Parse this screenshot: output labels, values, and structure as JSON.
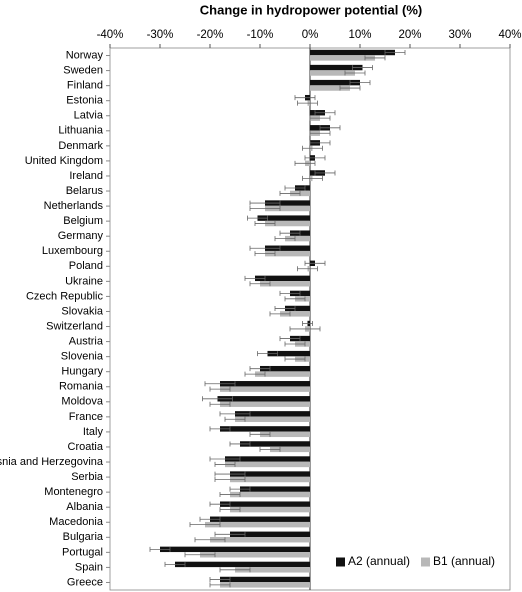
{
  "chart_data": {
    "type": "bar",
    "orientation": "horizontal",
    "title": "Change in hydropower potential (%)",
    "categories": [
      "Norway",
      "Sweden",
      "Finland",
      "Estonia",
      "Latvia",
      "Lithuania",
      "Denmark",
      "United Kingdom",
      "Ireland",
      "Belarus",
      "Netherlands",
      "Belgium",
      "Germany",
      "Luxembourg",
      "Poland",
      "Ukraine",
      "Czech Republic",
      "Slovakia",
      "Switzerland",
      "Austria",
      "Slovenia",
      "Hungary",
      "Romania",
      "Moldova",
      "France",
      "Italy",
      "Croatia",
      "Bosnia and Herzegovina",
      "Serbia",
      "Montenegro",
      "Albania",
      "Macedonia",
      "Bulgaria",
      "Portugal",
      "Spain",
      "Greece"
    ],
    "series": [
      {
        "name": "A2 (annual)",
        "color": "#111111",
        "values": [
          17,
          10.5,
          10,
          -1,
          3,
          4,
          2,
          1,
          3,
          -3,
          -9,
          -10.5,
          -4,
          -9,
          1,
          -11,
          -4,
          -5,
          -0.5,
          -4,
          -8.5,
          -10,
          -18,
          -18.5,
          -15,
          -18,
          -14,
          -17,
          -16,
          -14,
          -18,
          -20,
          -16,
          -30,
          -27,
          -18
        ],
        "errors": [
          2,
          2,
          2,
          2,
          2,
          2,
          2,
          2,
          2,
          2,
          3,
          2,
          2,
          3,
          2,
          2,
          2,
          2,
          1,
          2,
          2,
          2,
          3,
          3,
          3,
          2,
          2,
          3,
          3,
          2,
          2,
          2,
          3,
          2,
          2,
          2
        ]
      },
      {
        "name": "B1 (annual)",
        "color": "#b8b8b8",
        "values": [
          13,
          9,
          8,
          -0.5,
          2,
          2,
          0.5,
          -1,
          0.5,
          -4,
          -9,
          -9,
          -5,
          -9,
          -0.5,
          -10,
          -3,
          -6,
          -1,
          -3,
          -3,
          -11,
          -18,
          -18,
          -15,
          -10,
          -8,
          -17,
          -16,
          -16,
          -16,
          -21,
          -20,
          -22,
          -15,
          -18
        ],
        "errors": [
          2,
          2,
          2,
          2,
          2,
          2,
          2,
          2,
          2,
          2,
          3,
          2,
          2,
          2,
          2,
          2,
          2,
          2,
          3,
          2,
          2,
          2,
          2,
          2,
          2,
          2,
          2,
          2,
          3,
          2,
          2,
          3,
          3,
          3,
          3,
          2
        ]
      }
    ],
    "xlim": [
      -40,
      40
    ],
    "xticks": [
      {
        "value": -40,
        "label": "-40%"
      },
      {
        "value": -30,
        "label": "-30%"
      },
      {
        "value": -20,
        "label": "-20%"
      },
      {
        "value": -10,
        "label": "-10%"
      },
      {
        "value": 0,
        "label": "0%"
      },
      {
        "value": 10,
        "label": "10%"
      },
      {
        "value": 20,
        "label": "20%"
      },
      {
        "value": 30,
        "label": "30%"
      },
      {
        "value": 40,
        "label": "40%"
      }
    ],
    "legend": "lower right"
  }
}
